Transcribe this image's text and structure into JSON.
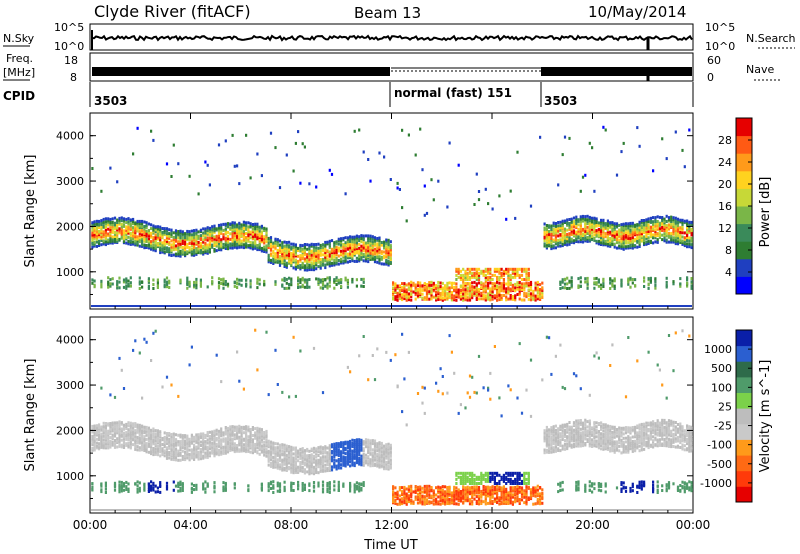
{
  "header": {
    "station": "Clyde River (fitACF)",
    "beam": "Beam 13",
    "date": "10/May/2014"
  },
  "strips": {
    "nsky": {
      "label": "N.Sky",
      "ticks": [
        "10^5",
        "10^0"
      ],
      "right_label": "N.Search",
      "right_ticks": [
        "10^5",
        "10^0"
      ]
    },
    "freq": {
      "label_top": "Freq.",
      "label_unit": "[MHz]",
      "ticks": [
        "18",
        "8"
      ],
      "right_label": "Nave",
      "right_ticks": [
        "60",
        "0"
      ]
    },
    "cpid": {
      "label": "CPID",
      "segments": [
        {
          "start_hour": 0,
          "text": "3503"
        },
        {
          "start_hour": 12,
          "text": "normal (fast) 151"
        },
        {
          "start_hour": 18,
          "text": "3503"
        }
      ]
    }
  },
  "colors": {
    "power": [
      "#0000ff",
      "#1f3fc0",
      "#2e7d32",
      "#3a8a5a",
      "#7ab648",
      "#c7d837",
      "#ffd21f",
      "#ff9a1a",
      "#ff5a14",
      "#e60000"
    ],
    "velocity": [
      "#0a1fa8",
      "#2b5fd0",
      "#2e6b4a",
      "#4f9b6a",
      "#7bd14a",
      "#bdbdbd",
      "#c9c9c9",
      "#ff9a1a",
      "#ff6a14",
      "#ff3a0a",
      "#e60000"
    ]
  },
  "chart_data": [
    {
      "type": "heatmap",
      "title": "",
      "ylabel": "Slant Range [km]",
      "xlabel": "",
      "x_ticks": [
        "00:00",
        "04:00",
        "08:00",
        "12:00",
        "16:00",
        "20:00",
        "00:00"
      ],
      "y_ticks": [
        "1000",
        "2000",
        "3000",
        "4000"
      ],
      "x_range_hours": [
        0,
        24
      ],
      "y_range_km": [
        180,
        4500
      ],
      "colorbar": {
        "label": "Power [dB]",
        "ticks": [
          "4",
          "8",
          "12",
          "16",
          "20",
          "24",
          "28"
        ],
        "range": [
          0,
          30
        ]
      }
    },
    {
      "type": "heatmap",
      "title": "",
      "ylabel": "Slant Range [km]",
      "xlabel": "Time UT",
      "x_ticks": [
        "00:00",
        "04:00",
        "08:00",
        "12:00",
        "16:00",
        "20:00",
        "00:00"
      ],
      "y_ticks": [
        "1000",
        "2000",
        "3000",
        "4000"
      ],
      "x_range_hours": [
        0,
        24
      ],
      "y_range_km": [
        180,
        4500
      ],
      "colorbar": {
        "label": "Velocity [m s^-1]",
        "ticks": [
          "1000",
          "500",
          "100",
          "25",
          "-25",
          "-100",
          "-500",
          "-1000"
        ]
      }
    }
  ]
}
